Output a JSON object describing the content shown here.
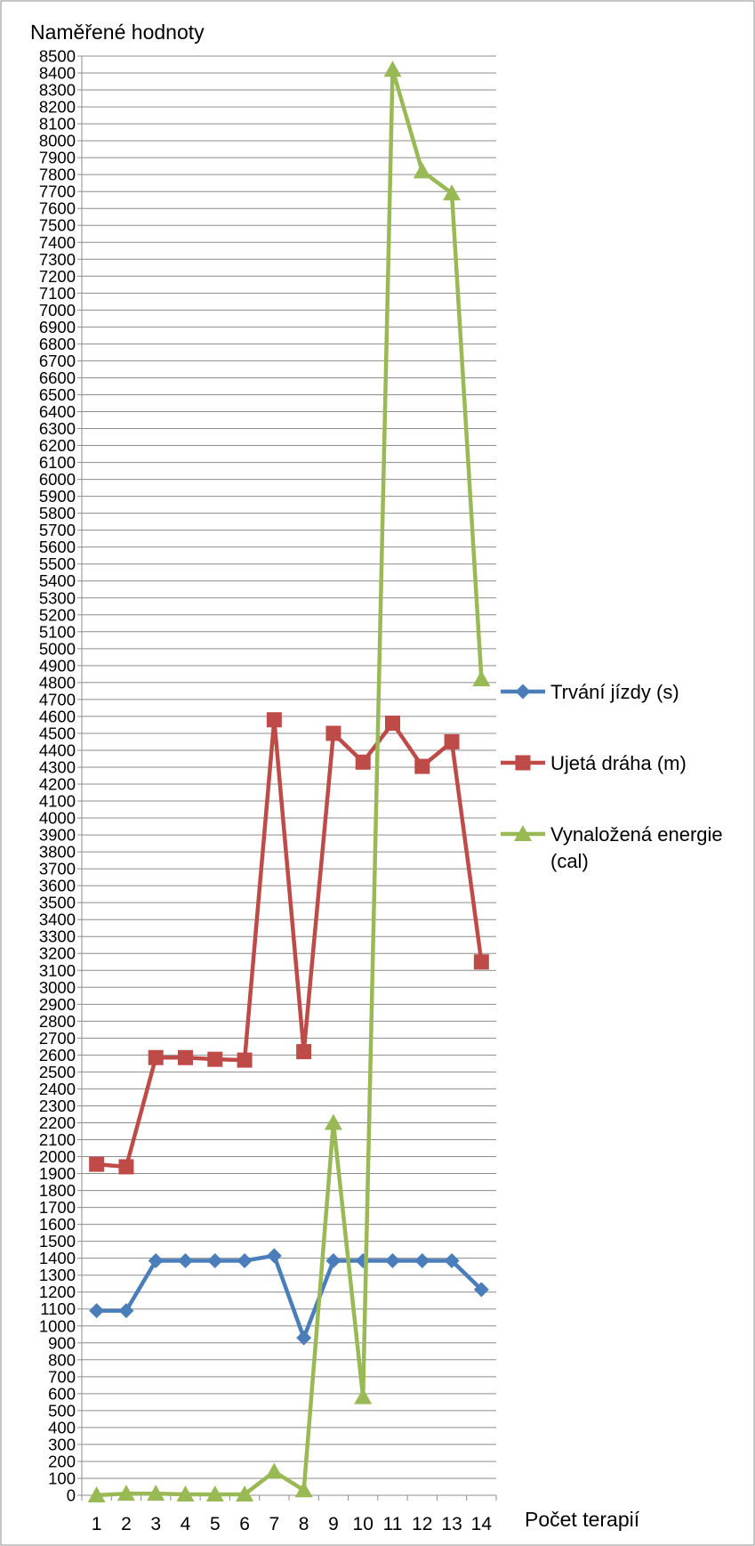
{
  "chart_data": {
    "type": "line",
    "title": "",
    "ylabel": "Naměřené hodnoty",
    "xlabel": "Počet terapií",
    "ylim": [
      0,
      8500
    ],
    "ytick_step": 100,
    "grid": "horizontal",
    "legend": "right",
    "categories": [
      "1",
      "2",
      "3",
      "4",
      "5",
      "6",
      "7",
      "8",
      "9",
      "10",
      "11",
      "12",
      "13",
      "14"
    ],
    "series": [
      {
        "name": "Trvání jízdy (s)",
        "color": "#4a7ebb",
        "marker": "diamond",
        "values": [
          1090,
          1090,
          1385,
          1385,
          1385,
          1385,
          1415,
          930,
          1385,
          1385,
          1385,
          1385,
          1385,
          1215
        ]
      },
      {
        "name": "Ujetá dráha (m)",
        "color": "#be4b48",
        "marker": "square",
        "values": [
          1955,
          1940,
          2585,
          2585,
          2575,
          2570,
          4580,
          2620,
          4500,
          4330,
          4560,
          4305,
          4450,
          3150
        ]
      },
      {
        "name": "Vynaložená energie (cal)",
        "name_lines": [
          "Vynaložená energie",
          "(cal)"
        ],
        "color": "#98b954",
        "marker": "triangle",
        "values": [
          0,
          10,
          10,
          5,
          5,
          5,
          140,
          30,
          2200,
          580,
          8420,
          7820,
          7690,
          4820
        ]
      }
    ]
  }
}
